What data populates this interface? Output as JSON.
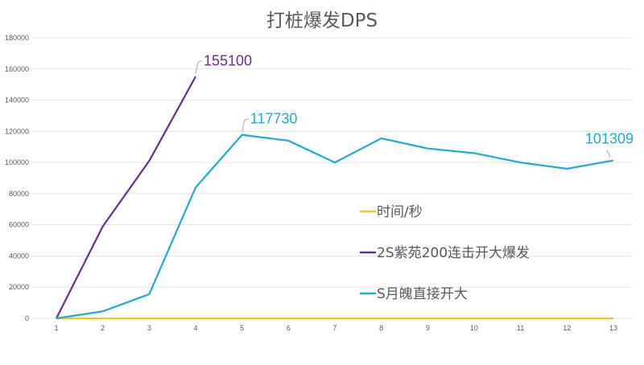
{
  "chart_data": {
    "type": "line",
    "title": "打桩爆发DPS",
    "xlabel": "",
    "ylabel": "",
    "x": [
      1,
      2,
      3,
      4,
      5,
      6,
      7,
      8,
      9,
      10,
      11,
      12,
      13
    ],
    "ylim": [
      0,
      180000
    ],
    "yticks": [
      0,
      20000,
      40000,
      60000,
      80000,
      100000,
      120000,
      140000,
      160000,
      180000
    ],
    "grid": true,
    "legend_position": "right-center inside",
    "series": [
      {
        "name": "时间/秒",
        "color": "#f5c518",
        "values": [
          1,
          2,
          3,
          4,
          5,
          6,
          7,
          8,
          9,
          10,
          11,
          12,
          13
        ]
      },
      {
        "name": "2S紫苑200连击开大爆发",
        "color": "#6a2c8e",
        "values": [
          0,
          59000,
          101000,
          155100,
          null,
          null,
          null,
          null,
          null,
          null,
          null,
          null,
          null
        ],
        "data_labels": {
          "4": "155100"
        }
      },
      {
        "name": "S月魄直接开大",
        "color": "#1aaed0",
        "values": [
          0,
          4500,
          15500,
          84000,
          117730,
          114000,
          100000,
          115500,
          109000,
          106000,
          100000,
          96000,
          101309
        ],
        "data_labels": {
          "5": "117730",
          "13": "101309"
        }
      }
    ]
  }
}
